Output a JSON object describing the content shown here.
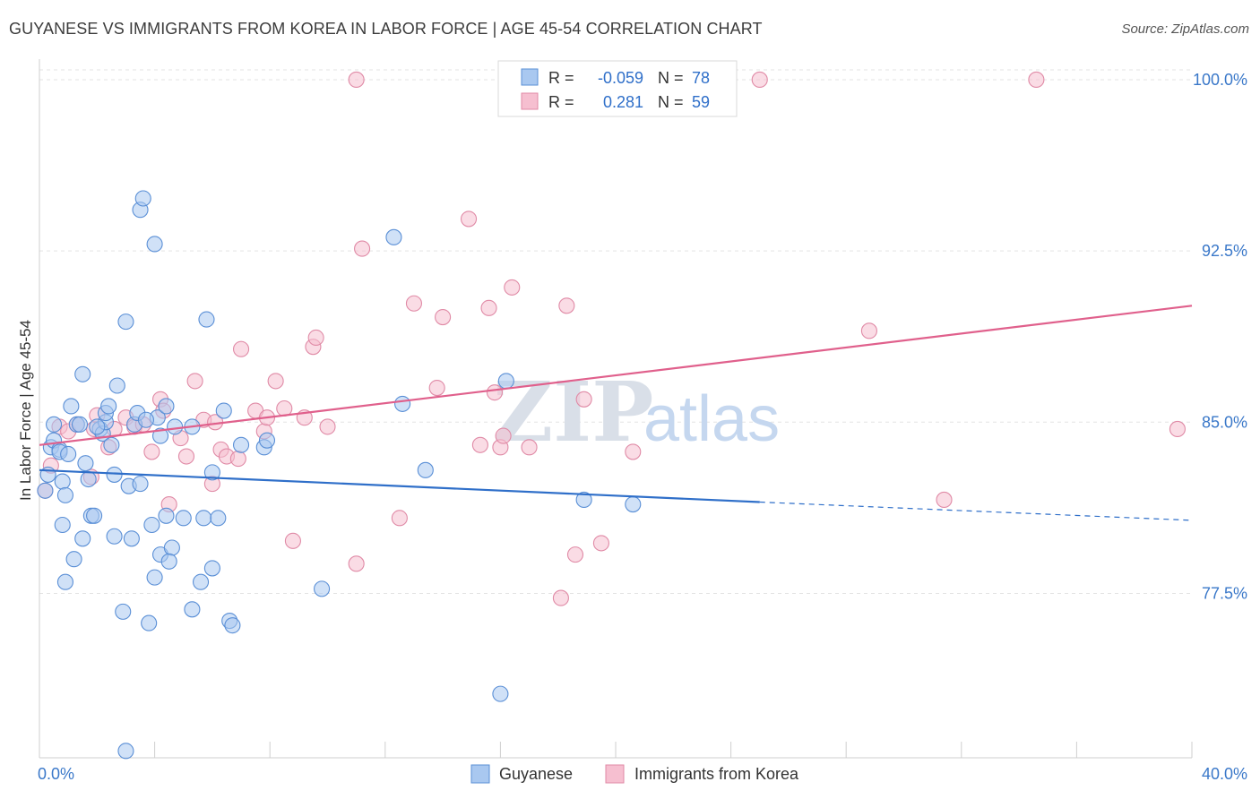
{
  "chart_data": {
    "type": "scatter",
    "title": "GUYANESE VS IMMIGRANTS FROM KOREA IN LABOR FORCE | AGE 45-54 CORRELATION CHART",
    "source": "Source: ZipAtlas.com",
    "xlabel": "",
    "ylabel": "In Labor Force | Age 45-54",
    "xlim": [
      0,
      40
    ],
    "ylim": [
      70.3,
      100.9
    ],
    "x_tick_labels": {
      "left": "0.0%",
      "right": "40.0%"
    },
    "y_ticks": [
      {
        "value": 100.0,
        "label": "100.0%"
      },
      {
        "value": 92.5,
        "label": "92.5%"
      },
      {
        "value": 85.0,
        "label": "85.0%"
      },
      {
        "value": 77.5,
        "label": "77.5%"
      }
    ],
    "watermark": {
      "zip": "ZIP",
      "atlas": "atlas"
    },
    "legend": {
      "rows": [
        {
          "r_label": "R =",
          "r_value": "-0.059",
          "n_label": "N =",
          "n_value": "78"
        },
        {
          "r_label": "R =",
          "r_value": "0.281",
          "n_label": "N =",
          "n_value": "59"
        }
      ]
    },
    "colors": {
      "guyanese_fill": "#a9c8f0",
      "guyanese_stroke": "#5a8fd6",
      "guyanese_line": "#2f6fc9",
      "korea_fill": "#f6bfd0",
      "korea_stroke": "#e08aa6",
      "korea_line": "#e0608c",
      "axis_text": "#3a78c9",
      "text_dark": "#333333",
      "grid": "#e3e3e3"
    },
    "series": [
      {
        "name": "Guyanese",
        "trend": {
          "x0": 0,
          "y0": 82.9,
          "x1": 25,
          "y1": 81.5,
          "dash_to_x": 40,
          "dash_to_y": 80.7
        },
        "points": [
          [
            0.3,
            82.7
          ],
          [
            0.4,
            83.9
          ],
          [
            0.5,
            84.2
          ],
          [
            0.5,
            84.9
          ],
          [
            0.7,
            83.8
          ],
          [
            0.7,
            83.7
          ],
          [
            0.8,
            82.4
          ],
          [
            0.8,
            80.5
          ],
          [
            0.9,
            81.8
          ],
          [
            0.9,
            78.0
          ],
          [
            1.1,
            85.7
          ],
          [
            1.2,
            79.0
          ],
          [
            1.3,
            84.9
          ],
          [
            1.4,
            84.9
          ],
          [
            1.5,
            79.9
          ],
          [
            1.5,
            87.1
          ],
          [
            1.6,
            83.2
          ],
          [
            1.7,
            82.5
          ],
          [
            1.8,
            80.9
          ],
          [
            1.9,
            80.9
          ],
          [
            2.1,
            84.7
          ],
          [
            2.2,
            84.5
          ],
          [
            2.3,
            85.0
          ],
          [
            2.3,
            85.4
          ],
          [
            2.4,
            85.7
          ],
          [
            2.5,
            84.0
          ],
          [
            2.6,
            80.0
          ],
          [
            2.6,
            82.7
          ],
          [
            2.7,
            86.6
          ],
          [
            2.9,
            76.7
          ],
          [
            3.0,
            89.4
          ],
          [
            3.0,
            70.6
          ],
          [
            3.1,
            82.2
          ],
          [
            3.2,
            79.9
          ],
          [
            3.3,
            84.9
          ],
          [
            3.4,
            85.4
          ],
          [
            3.5,
            82.3
          ],
          [
            3.5,
            94.3
          ],
          [
            3.6,
            94.8
          ],
          [
            3.8,
            76.2
          ],
          [
            3.9,
            80.5
          ],
          [
            4.0,
            78.2
          ],
          [
            4.0,
            92.8
          ],
          [
            4.1,
            85.2
          ],
          [
            4.2,
            79.2
          ],
          [
            4.2,
            84.4
          ],
          [
            4.4,
            80.9
          ],
          [
            4.4,
            85.7
          ],
          [
            4.6,
            79.5
          ],
          [
            4.5,
            78.9
          ],
          [
            4.7,
            84.8
          ],
          [
            5.0,
            80.8
          ],
          [
            5.3,
            84.8
          ],
          [
            5.3,
            76.8
          ],
          [
            5.6,
            78.0
          ],
          [
            5.7,
            80.8
          ],
          [
            5.8,
            89.5
          ],
          [
            6.0,
            82.8
          ],
          [
            6.0,
            78.6
          ],
          [
            6.2,
            80.8
          ],
          [
            6.4,
            85.5
          ],
          [
            6.6,
            76.3
          ],
          [
            6.7,
            76.1
          ],
          [
            7.0,
            84.0
          ],
          [
            7.8,
            83.9
          ],
          [
            7.9,
            84.2
          ],
          [
            9.8,
            77.7
          ],
          [
            12.3,
            93.1
          ],
          [
            12.6,
            85.8
          ],
          [
            13.4,
            82.9
          ],
          [
            16.0,
            73.1
          ],
          [
            16.2,
            86.8
          ],
          [
            18.9,
            81.6
          ],
          [
            20.6,
            81.4
          ],
          [
            0.2,
            82.0
          ],
          [
            1.0,
            83.6
          ],
          [
            2.0,
            84.8
          ],
          [
            3.7,
            85.1
          ]
        ]
      },
      {
        "name": "Immigrants from Korea",
        "trend": {
          "x0": 0,
          "y0": 84.0,
          "x1": 40,
          "y1": 90.1
        },
        "points": [
          [
            0.2,
            82.0
          ],
          [
            0.4,
            83.1
          ],
          [
            0.7,
            84.8
          ],
          [
            1.0,
            84.6
          ],
          [
            1.3,
            84.9
          ],
          [
            1.8,
            82.6
          ],
          [
            1.9,
            84.7
          ],
          [
            2.0,
            85.3
          ],
          [
            2.4,
            83.9
          ],
          [
            2.6,
            84.7
          ],
          [
            3.0,
            85.2
          ],
          [
            3.3,
            84.8
          ],
          [
            3.6,
            84.9
          ],
          [
            3.9,
            83.7
          ],
          [
            4.2,
            86.0
          ],
          [
            4.3,
            85.5
          ],
          [
            4.5,
            81.4
          ],
          [
            4.9,
            84.3
          ],
          [
            5.1,
            83.5
          ],
          [
            5.4,
            86.8
          ],
          [
            5.7,
            85.1
          ],
          [
            6.0,
            82.3
          ],
          [
            6.1,
            85.0
          ],
          [
            6.3,
            83.8
          ],
          [
            6.5,
            83.5
          ],
          [
            6.9,
            83.4
          ],
          [
            7.0,
            88.2
          ],
          [
            7.5,
            85.5
          ],
          [
            7.8,
            84.6
          ],
          [
            7.9,
            85.2
          ],
          [
            8.2,
            86.8
          ],
          [
            8.5,
            85.6
          ],
          [
            8.8,
            79.8
          ],
          [
            9.2,
            85.2
          ],
          [
            9.5,
            88.3
          ],
          [
            9.6,
            88.7
          ],
          [
            10.0,
            84.8
          ],
          [
            11.0,
            78.8
          ],
          [
            11.2,
            92.6
          ],
          [
            12.5,
            80.8
          ],
          [
            13.0,
            90.2
          ],
          [
            13.8,
            86.5
          ],
          [
            14.0,
            89.6
          ],
          [
            14.9,
            93.9
          ],
          [
            15.3,
            84.0
          ],
          [
            15.6,
            90.0
          ],
          [
            15.8,
            86.3
          ],
          [
            16.0,
            83.9
          ],
          [
            16.1,
            84.4
          ],
          [
            16.4,
            90.9
          ],
          [
            17.0,
            83.9
          ],
          [
            18.1,
            77.3
          ],
          [
            18.3,
            90.1
          ],
          [
            18.6,
            79.2
          ],
          [
            18.9,
            86.0
          ],
          [
            19.5,
            79.7
          ],
          [
            20.6,
            83.7
          ],
          [
            11.0,
            100.0
          ],
          [
            25.0,
            100.0
          ]
        ],
        "extra_points": [
          [
            28.8,
            89.0
          ],
          [
            31.4,
            81.6
          ],
          [
            34.6,
            100.0
          ],
          [
            39.5,
            84.7
          ]
        ]
      }
    ],
    "legend_entries": [
      "Guyanese",
      "Immigrants from Korea"
    ]
  }
}
